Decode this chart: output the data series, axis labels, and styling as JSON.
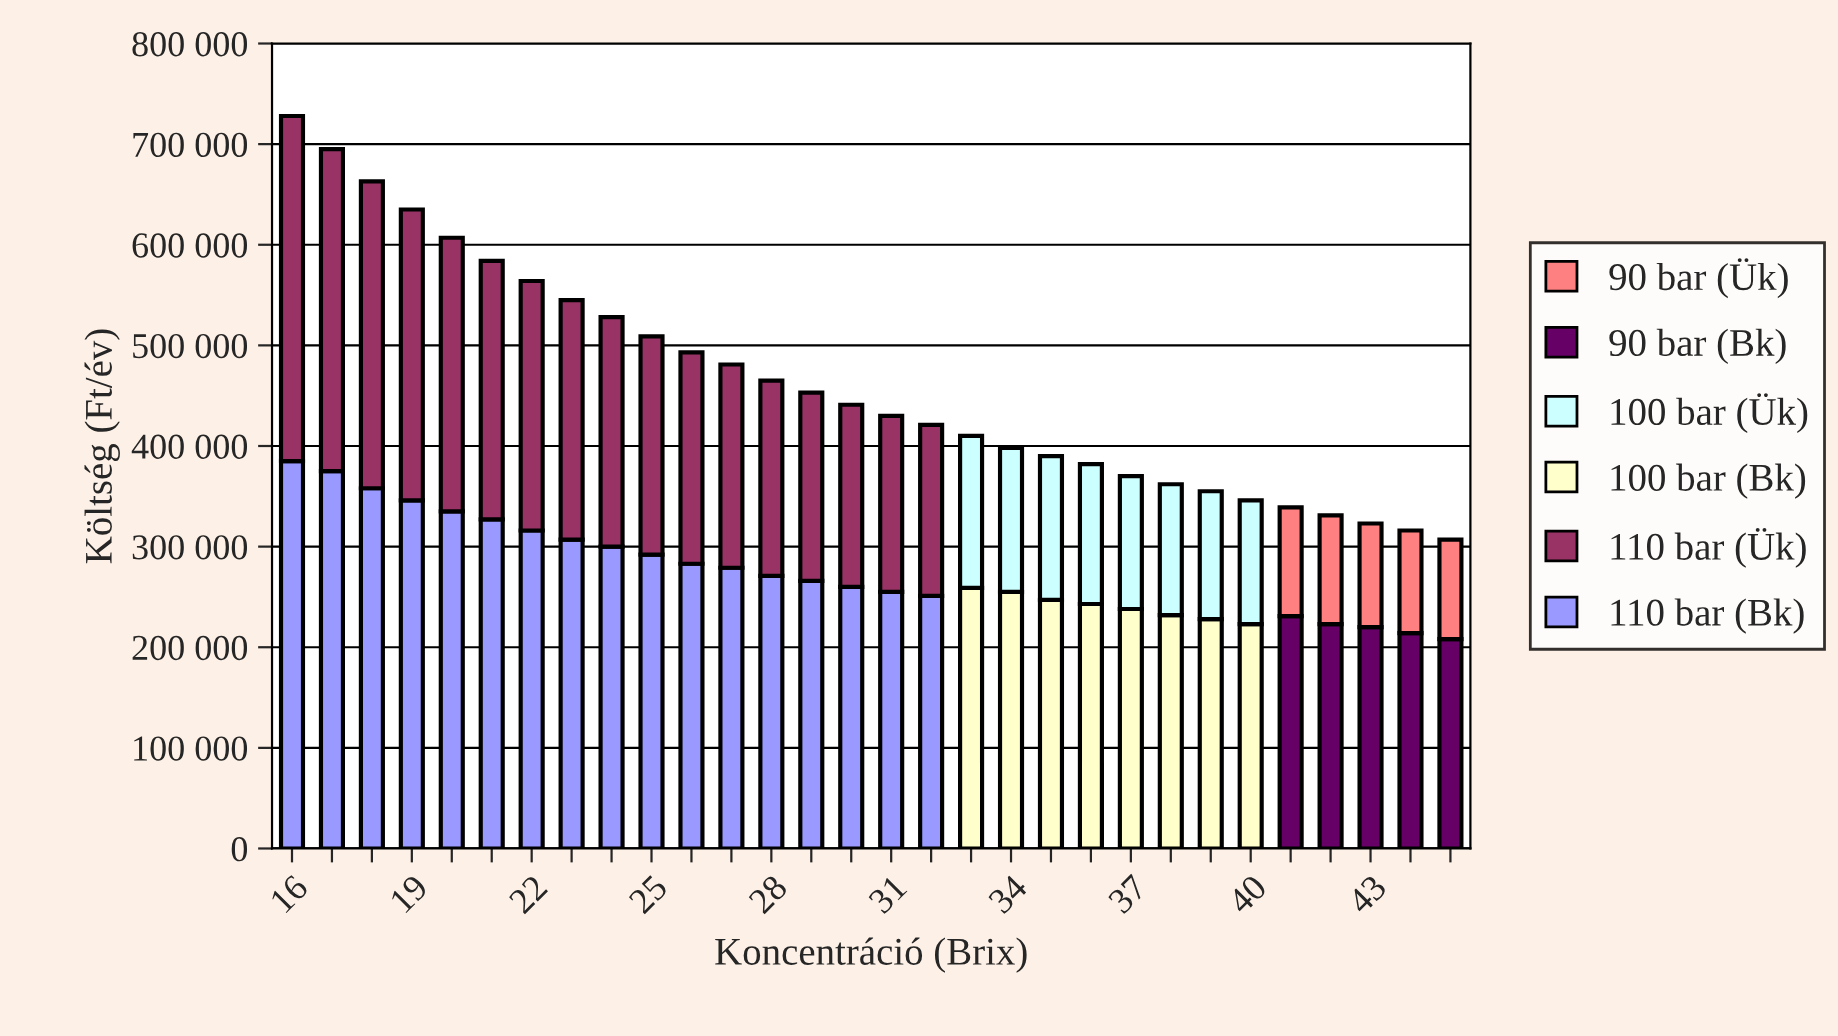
{
  "chart_data": {
    "type": "bar",
    "stacked": true,
    "xlabel": "Koncentráció (Brix)",
    "ylabel": "Költség (Ft/év)",
    "categories": [
      "16",
      null,
      null,
      "19",
      null,
      null,
      "22",
      null,
      null,
      "25",
      null,
      null,
      "28",
      null,
      null,
      "31",
      null,
      null,
      "34",
      null,
      null,
      "37",
      null,
      null,
      "40",
      null,
      null,
      "43",
      null,
      null
    ],
    "series": [
      {
        "name": "110 bar (Bk)",
        "color": "#9999ff",
        "values": [
          385000,
          375000,
          358000,
          346000,
          335000,
          327000,
          316000,
          307000,
          300000,
          292000,
          283000,
          279000,
          271000,
          266000,
          260000,
          255000,
          251000,
          null,
          null,
          null,
          null,
          null,
          null,
          null,
          null,
          null,
          null,
          null,
          null,
          null
        ]
      },
      {
        "name": "110 bar (Ük)",
        "color": "#993366",
        "values": [
          343000,
          320000,
          305000,
          289000,
          272000,
          257000,
          248000,
          238000,
          228000,
          217000,
          210000,
          202000,
          194000,
          187000,
          181000,
          175000,
          170000,
          null,
          null,
          null,
          null,
          null,
          null,
          null,
          null,
          null,
          null,
          null,
          null,
          null
        ]
      },
      {
        "name": "100 bar (Bk)",
        "color": "#ffffcc",
        "values": [
          null,
          null,
          null,
          null,
          null,
          null,
          null,
          null,
          null,
          null,
          null,
          null,
          null,
          null,
          null,
          null,
          null,
          259000,
          255000,
          247000,
          243000,
          238000,
          232000,
          228000,
          223000,
          null,
          null,
          null,
          null,
          null
        ]
      },
      {
        "name": "100 bar (Ük)",
        "color": "#ccffff",
        "values": [
          null,
          null,
          null,
          null,
          null,
          null,
          null,
          null,
          null,
          null,
          null,
          null,
          null,
          null,
          null,
          null,
          null,
          151000,
          143000,
          143000,
          139000,
          132000,
          130000,
          127000,
          123000,
          null,
          null,
          null,
          null,
          null
        ]
      },
      {
        "name": "90 bar (Bk)",
        "color": "#660066",
        "values": [
          null,
          null,
          null,
          null,
          null,
          null,
          null,
          null,
          null,
          null,
          null,
          null,
          null,
          null,
          null,
          null,
          null,
          null,
          null,
          null,
          null,
          null,
          null,
          null,
          null,
          231000,
          223000,
          220000,
          214000,
          208000
        ]
      },
      {
        "name": "90 bar (Ük)",
        "color": "#ff8080",
        "values": [
          null,
          null,
          null,
          null,
          null,
          null,
          null,
          null,
          null,
          null,
          null,
          null,
          null,
          null,
          null,
          null,
          null,
          null,
          null,
          null,
          null,
          null,
          null,
          null,
          null,
          108000,
          108000,
          103000,
          102000,
          99000
        ]
      }
    ],
    "ylim": [
      0,
      800000
    ],
    "yticks": [
      {
        "value": 0,
        "label": "0"
      },
      {
        "value": 100000,
        "label": "100 000"
      },
      {
        "value": 200000,
        "label": "200 000"
      },
      {
        "value": 300000,
        "label": "300 000"
      },
      {
        "value": 400000,
        "label": "400 000"
      },
      {
        "value": 500000,
        "label": "500 000"
      },
      {
        "value": 600000,
        "label": "600 000"
      },
      {
        "value": 700000,
        "label": "700 000"
      },
      {
        "value": 800000,
        "label": "800 000"
      }
    ],
    "grid": "y",
    "legend": "right"
  }
}
